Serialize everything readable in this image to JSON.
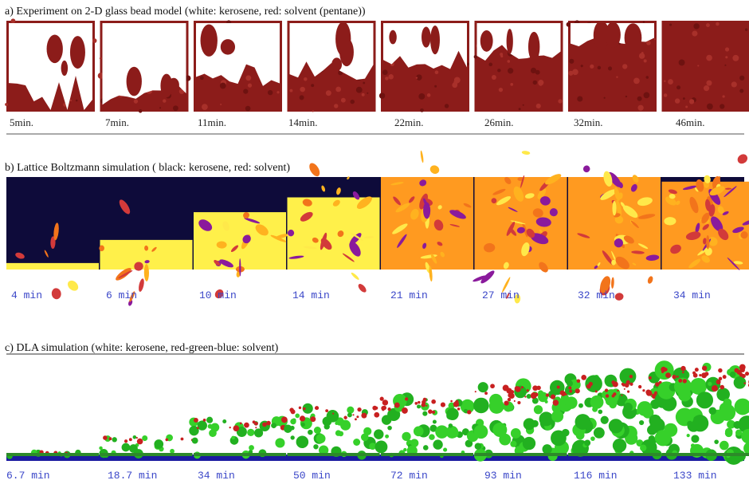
{
  "panels": [
    {
      "title": "a) Experiment on 2-D glass bead model (white: kerosene, red: solvent (pentane))",
      "labels": [
        "5min.",
        "7min.",
        "11min.",
        "14min.",
        "22min.",
        "26min.",
        "32min.",
        "46min."
      ]
    },
    {
      "title": "b) Lattice Boltzmann simulation ( black: kerosene, red: solvent)",
      "labels": [
        "4 min",
        "6 min",
        "10 min",
        "14 min",
        "21 min",
        "27 min",
        "32 min",
        "34 min"
      ]
    },
    {
      "title": "c) DLA simulation (white: kerosene, red-green-blue: solvent)",
      "labels": [
        "6.7 min",
        "18.7 min",
        "34 min",
        "50 min",
        "72 min",
        "93 min",
        "116 min",
        "133 min"
      ]
    }
  ]
}
